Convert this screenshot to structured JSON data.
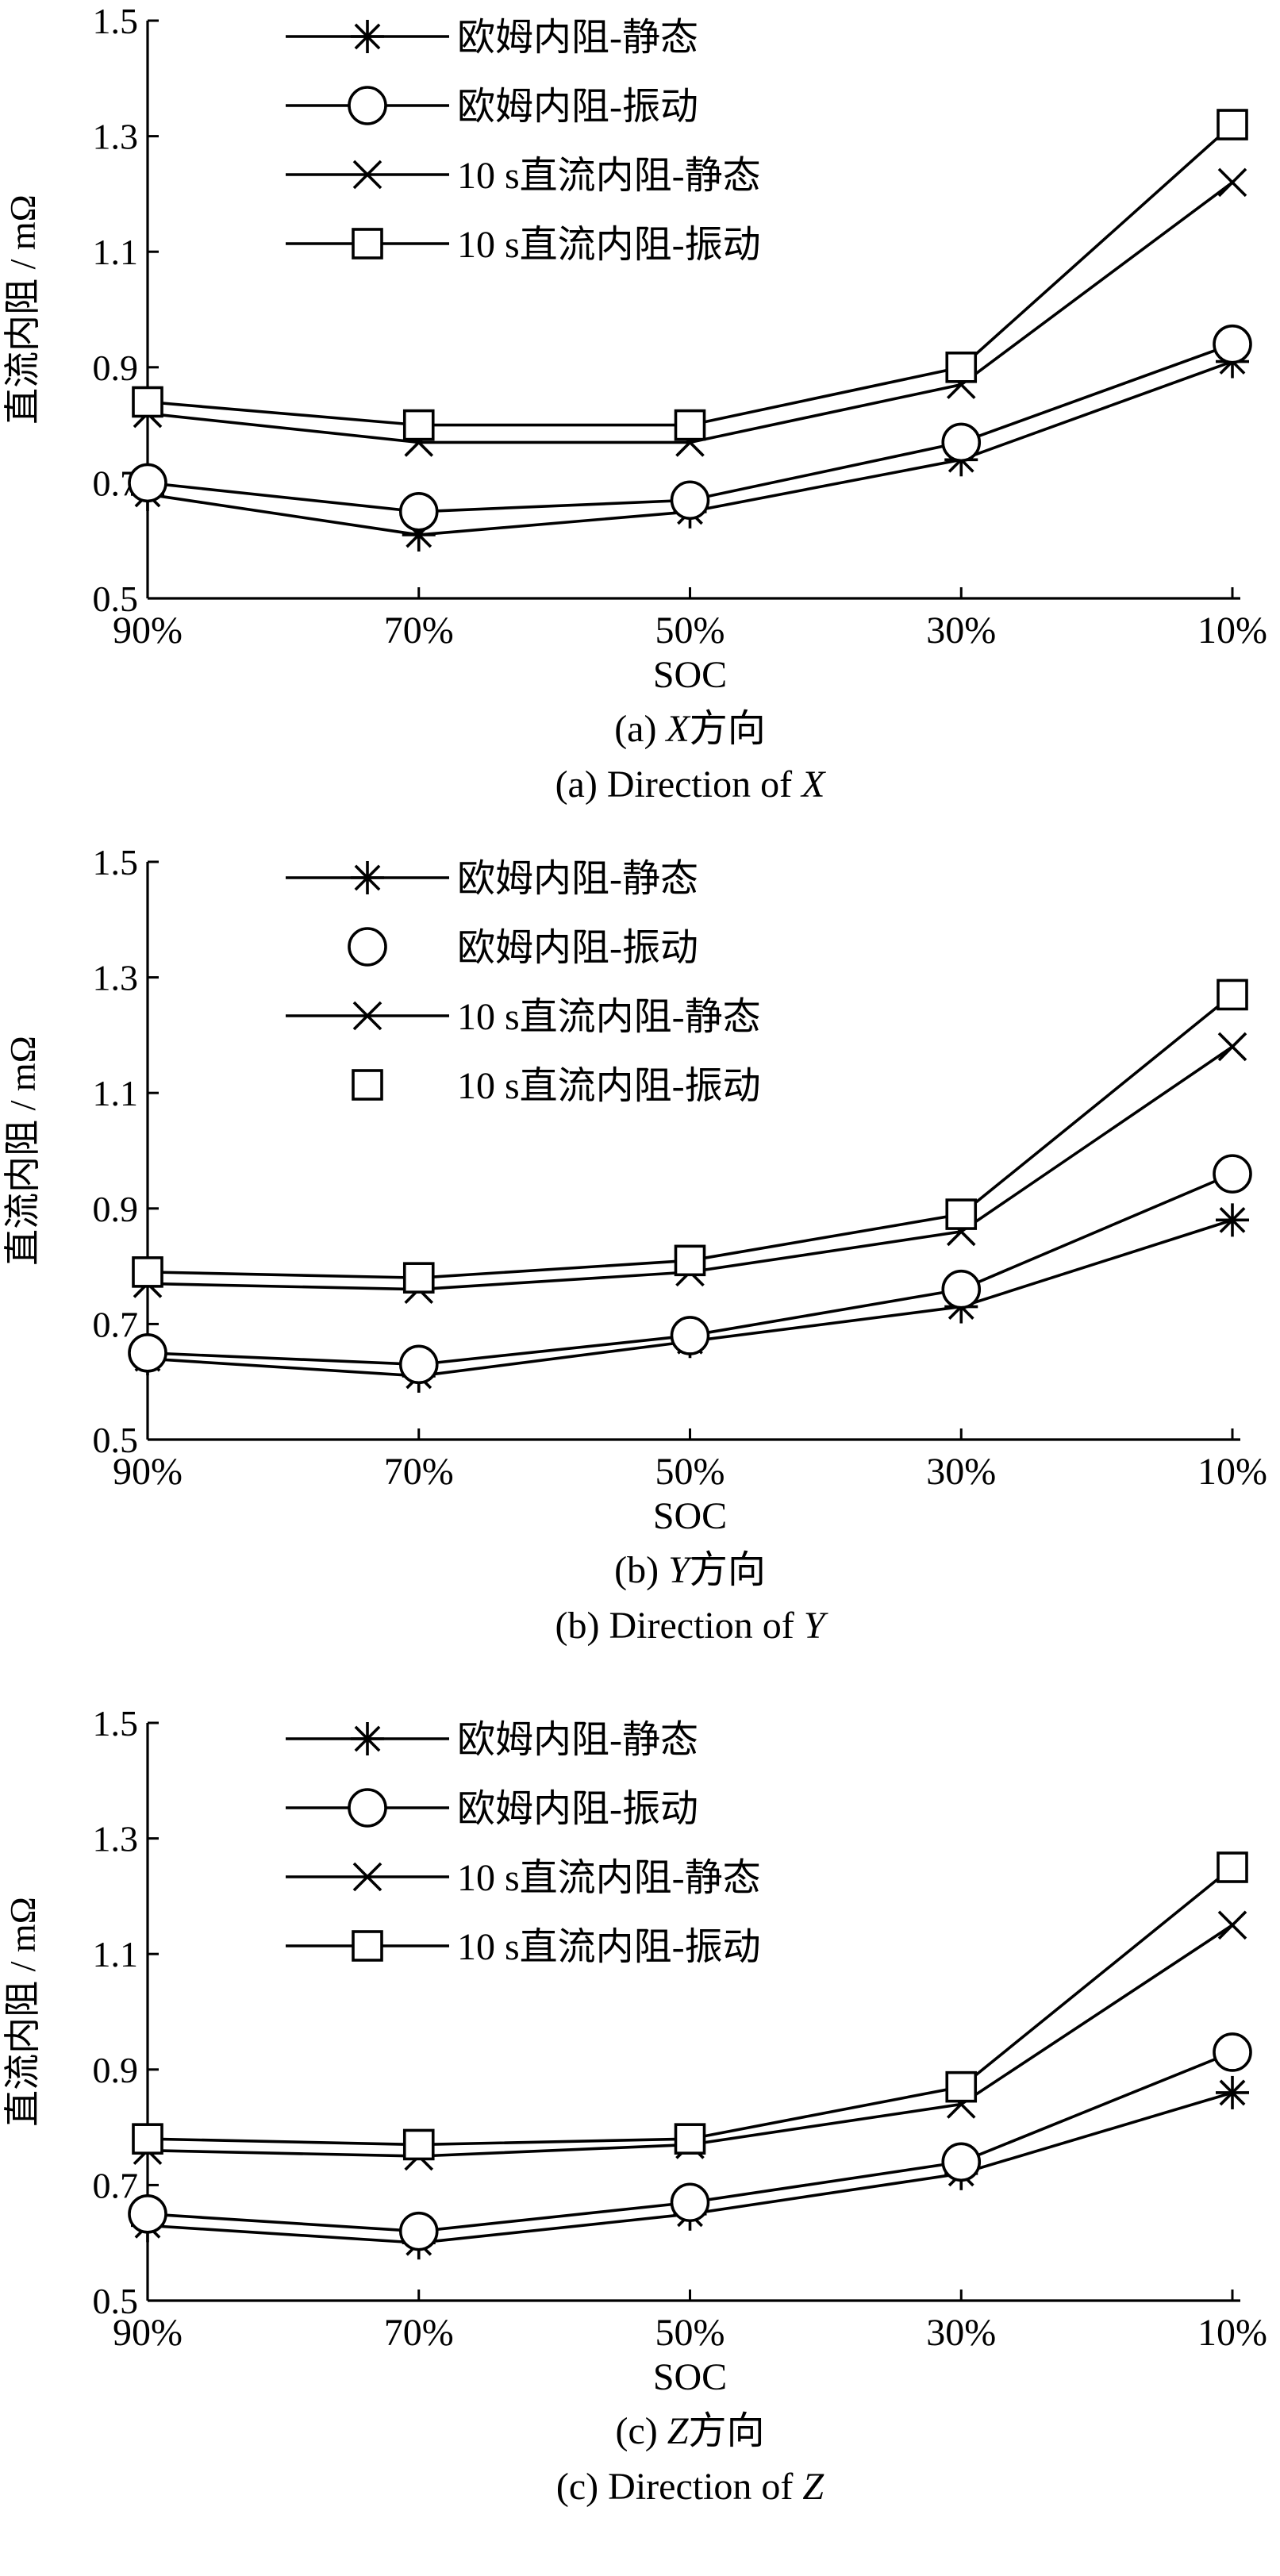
{
  "figure": {
    "y_label": "直流内阻 / mΩ",
    "x_label": "SOC",
    "series_names": [
      "欧姆内阻-静态",
      "欧姆内阻-振动",
      "10 s直流内阻-静态",
      "10 s直流内阻-振动"
    ]
  },
  "chart_data": [
    {
      "type": "line",
      "caption_cn_prefix": "(a) ",
      "caption_cn_axis": "X",
      "caption_cn_suffix": "方向",
      "caption_en_prefix": "(a) Direction of ",
      "caption_en_axis": "X",
      "categories": [
        "90%",
        "70%",
        "50%",
        "30%",
        "10%"
      ],
      "ylim": [
        0.5,
        1.5
      ],
      "yticks": [
        "0.5",
        "0.7",
        "0.9",
        "1.1",
        "1.3",
        "1.5"
      ],
      "legend_position": "top-left",
      "series": [
        {
          "name": "欧姆内阻-静态",
          "marker": "asterisk",
          "values": [
            0.68,
            0.61,
            0.65,
            0.74,
            0.91
          ]
        },
        {
          "name": "欧姆内阻-振动",
          "marker": "circle",
          "values": [
            0.7,
            0.65,
            0.67,
            0.77,
            0.94
          ]
        },
        {
          "name": "10 s直流内阻-静态",
          "marker": "x",
          "values": [
            0.82,
            0.77,
            0.77,
            0.87,
            1.22
          ]
        },
        {
          "name": "10 s直流内阻-振动",
          "marker": "square",
          "values": [
            0.84,
            0.8,
            0.8,
            0.9,
            1.32
          ]
        }
      ]
    },
    {
      "type": "line",
      "caption_cn_prefix": "(b) ",
      "caption_cn_axis": "Y",
      "caption_cn_suffix": "方向",
      "caption_en_prefix": "(b) Direction of ",
      "caption_en_axis": "Y",
      "categories": [
        "90%",
        "70%",
        "50%",
        "30%",
        "10%"
      ],
      "ylim": [
        0.5,
        1.5
      ],
      "yticks": [
        "0.5",
        "0.7",
        "0.9",
        "1.1",
        "1.3",
        "1.5"
      ],
      "legend_position": "top-left",
      "series": [
        {
          "name": "欧姆内阻-静态",
          "marker": "asterisk",
          "values": [
            0.64,
            0.61,
            0.67,
            0.73,
            0.88
          ]
        },
        {
          "name": "欧姆内阻-振动",
          "marker": "circle",
          "values": [
            0.65,
            0.63,
            0.68,
            0.76,
            0.96
          ]
        },
        {
          "name": "10 s直流内阻-静态",
          "marker": "x",
          "values": [
            0.77,
            0.76,
            0.79,
            0.86,
            1.18
          ]
        },
        {
          "name": "10 s直流内阻-振动",
          "marker": "square",
          "values": [
            0.79,
            0.78,
            0.81,
            0.89,
            1.27
          ]
        }
      ]
    },
    {
      "type": "line",
      "caption_cn_prefix": "(c) ",
      "caption_cn_axis": "Z",
      "caption_cn_suffix": "方向",
      "caption_en_prefix": "(c) Direction of ",
      "caption_en_axis": "Z",
      "categories": [
        "90%",
        "70%",
        "50%",
        "30%",
        "10%"
      ],
      "ylim": [
        0.5,
        1.5
      ],
      "yticks": [
        "0.5",
        "0.7",
        "0.9",
        "1.1",
        "1.3",
        "1.5"
      ],
      "legend_position": "top-left",
      "series": [
        {
          "name": "欧姆内阻-静态",
          "marker": "asterisk",
          "values": [
            0.63,
            0.6,
            0.65,
            0.72,
            0.86
          ]
        },
        {
          "name": "欧姆内阻-振动",
          "marker": "circle",
          "values": [
            0.65,
            0.62,
            0.67,
            0.74,
            0.93
          ]
        },
        {
          "name": "10 s直流内阻-静态",
          "marker": "x",
          "values": [
            0.76,
            0.75,
            0.77,
            0.84,
            1.15
          ]
        },
        {
          "name": "10 s直流内阻-振动",
          "marker": "square",
          "values": [
            0.78,
            0.77,
            0.78,
            0.87,
            1.25
          ]
        }
      ]
    }
  ]
}
